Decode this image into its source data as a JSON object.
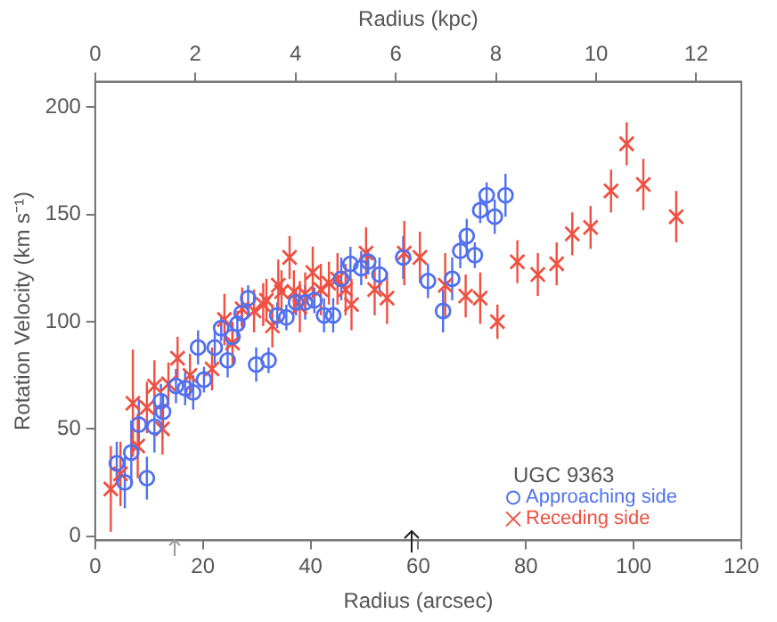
{
  "chart_data": {
    "type": "scatter",
    "xlabel": "Radius (arcsec)",
    "ylabel": "Rotation Velocity (km s⁻¹)",
    "x2label": "Radius (kpc)",
    "xlim": [
      0,
      120
    ],
    "xticks": [
      0,
      20,
      40,
      60,
      80,
      100,
      120
    ],
    "ylim": [
      -2,
      212
    ],
    "yticks": [
      0,
      50,
      100,
      150,
      200
    ],
    "x2lim": [
      0,
      12.9
    ],
    "x2ticks": [
      0,
      2,
      4,
      6,
      8,
      10,
      12
    ],
    "grid": false,
    "legend": "bottom right",
    "legend_title": "UGC 9363",
    "series": [
      {
        "name": "Approaching side",
        "color": "#5070f0",
        "marker": "circle",
        "x": [
          4.0,
          5.5,
          6.7,
          8.1,
          9.6,
          11,
          12.2,
          12.6,
          15,
          16.7,
          18.2,
          19.1,
          20.2,
          22.2,
          23.4,
          24.6,
          25.5,
          26.4,
          27.2,
          28.4,
          29.9,
          32.2,
          33.8,
          35.5,
          37.3,
          39,
          40.7,
          42.5,
          44.2,
          45.7,
          47.4,
          49.4,
          50.7,
          52.8,
          57.2,
          61.8,
          64.6,
          66.3,
          67.8,
          69,
          70.5,
          71.5,
          72.7,
          74.2,
          76.2
        ],
        "values": [
          34,
          25,
          39,
          52,
          27,
          51,
          63,
          58,
          70,
          69,
          67,
          88,
          73,
          88,
          97,
          82,
          93,
          99,
          104,
          111,
          80,
          82,
          103,
          102,
          109,
          109,
          110,
          103,
          103,
          120,
          127,
          125,
          128,
          122,
          130,
          119,
          105,
          120,
          133,
          140,
          131,
          152,
          159,
          149,
          159
        ],
        "errors": [
          10,
          12,
          15,
          12,
          10,
          12,
          8,
          8,
          8,
          8,
          8,
          8,
          6,
          8,
          6,
          8,
          6,
          6,
          6,
          6,
          8,
          6,
          6,
          6,
          6,
          8,
          6,
          8,
          8,
          10,
          8,
          8,
          6,
          8,
          10,
          8,
          10,
          10,
          8,
          8,
          6,
          6,
          6,
          8,
          10
        ]
      },
      {
        "name": "Receding side",
        "color": "#f05040",
        "marker": "cross",
        "x": [
          2.9,
          4.7,
          7,
          7.9,
          9.6,
          11,
          12.5,
          13.6,
          15.3,
          17.6,
          21.7,
          24,
          25.5,
          27.3,
          29.5,
          31.2,
          31.8,
          32.9,
          34,
          34.6,
          36.1,
          36.9,
          38,
          39,
          40.4,
          41.9,
          43.4,
          45,
          46.5,
          47.6,
          50.3,
          51.9,
          54.2,
          57.4,
          60.3,
          65,
          68.8,
          71.5,
          74.7,
          78.4,
          82.2,
          85.7,
          88.6,
          92,
          95.8,
          98.7,
          101.8,
          107.9
        ],
        "values": [
          22,
          29,
          62,
          42,
          60,
          70,
          50,
          71,
          83,
          75,
          78,
          101,
          90,
          106,
          105,
          108,
          110,
          98,
          117,
          114,
          130,
          114,
          107,
          113,
          123,
          115,
          118,
          120,
          115,
          108,
          132,
          115,
          111,
          132,
          130,
          117,
          112,
          111,
          100,
          128,
          122,
          127,
          141,
          144,
          161,
          183,
          164,
          149
        ],
        "errors": [
          20,
          15,
          25,
          15,
          12,
          12,
          12,
          10,
          10,
          10,
          10,
          12,
          10,
          10,
          10,
          10,
          10,
          10,
          12,
          10,
          10,
          10,
          12,
          10,
          12,
          12,
          10,
          12,
          12,
          12,
          12,
          12,
          12,
          15,
          12,
          15,
          10,
          12,
          8,
          10,
          10,
          10,
          10,
          10,
          10,
          10,
          12,
          12
        ]
      }
    ]
  }
}
